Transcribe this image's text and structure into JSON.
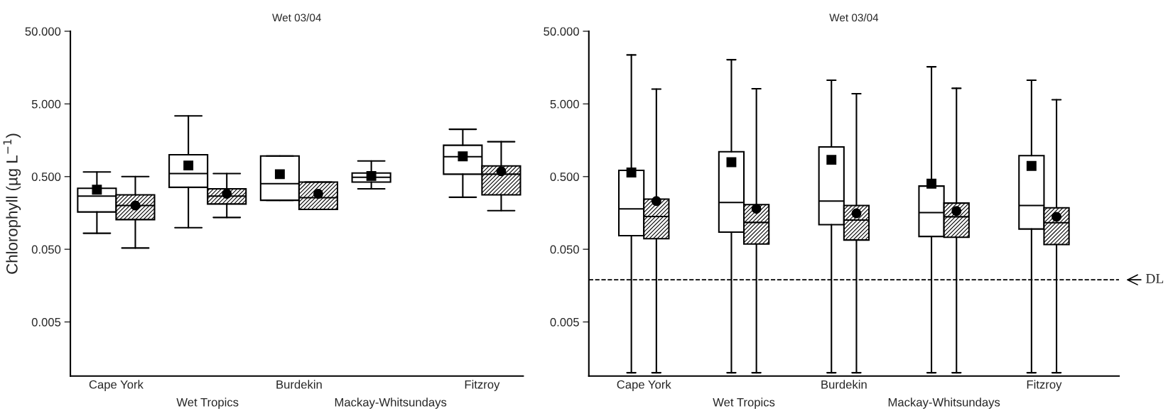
{
  "chart_data": [
    {
      "type": "box",
      "title": "Wet 03/04",
      "ylabel": "Chlorophyll (µg L$^{−1}$)",
      "log": true,
      "ylim": [
        0.0009,
        50
      ],
      "yticks": [
        {
          "value": 50,
          "label": "50.000"
        },
        {
          "value": 5,
          "label": "5.000"
        },
        {
          "value": 0.5,
          "label": "0.500"
        },
        {
          "value": 0.05,
          "label": "0.050"
        },
        {
          "value": 0.005,
          "label": "0.005"
        }
      ],
      "categories": [
        "Cape York",
        "Wet Tropics",
        "Burdekin",
        "Mackay-Whitsundays",
        "Fitzroy"
      ],
      "series": [
        {
          "color": "#000000",
          "marker": "square",
          "boxes": [
            {
              "low": 0.083,
              "q1": 0.163,
              "median": 0.27,
              "q3": 0.345,
              "high": 0.58,
              "mean": 0.33
            },
            {
              "low": 0.099,
              "q1": 0.356,
              "median": 0.55,
              "q3": 1.0,
              "high": 3.42,
              "mean": 0.71
            },
            {
              "low": 0.236,
              "q1": 0.236,
              "median": 0.4,
              "q3": 0.96,
              "high": 0.96,
              "mean": 0.54
            },
            {
              "low": 0.34,
              "q1": 0.42,
              "median": 0.49,
              "q3": 0.56,
              "high": 0.82,
              "mean": 0.51
            },
            {
              "low": 0.26,
              "q1": 0.54,
              "median": 0.94,
              "q3": 1.35,
              "high": 2.24,
              "mean": 0.95
            }
          ]
        },
        {
          "color": "#000000",
          "marker": "circle",
          "boxes": [
            {
              "low": 0.052,
              "q1": 0.128,
              "median": 0.2,
              "q3": 0.28,
              "high": 0.5,
              "mean": 0.2
            },
            {
              "low": 0.137,
              "q1": 0.21,
              "median": 0.27,
              "q3": 0.34,
              "high": 0.55,
              "mean": 0.29
            },
            {
              "low": 0.177,
              "q1": 0.177,
              "median": 0.256,
              "q3": 0.42,
              "high": 0.42,
              "mean": 0.29
            },
            null,
            {
              "low": 0.17,
              "q1": 0.28,
              "median": 0.54,
              "q3": 0.7,
              "high": 1.51,
              "mean": 0.59
            }
          ]
        }
      ]
    },
    {
      "type": "box",
      "title": "Wet 03/04",
      "log": true,
      "ylim": [
        0.0009,
        50
      ],
      "yticks": [
        {
          "value": 50,
          "label": "50.000"
        },
        {
          "value": 5,
          "label": "5.000"
        },
        {
          "value": 0.5,
          "label": "0.500"
        },
        {
          "value": 0.05,
          "label": "0.050"
        },
        {
          "value": 0.005,
          "label": "0.005"
        }
      ],
      "categories": [
        "Cape York",
        "Wet Tropics",
        "Burdekin",
        "Mackay-Whitsundays",
        "Fitzroy"
      ],
      "ref_lines": [
        {
          "axis": "y",
          "value": 0.019,
          "label": "DL",
          "color": "#000000",
          "line_style": "dashed"
        }
      ],
      "series": [
        {
          "color": "#000000",
          "marker": "square",
          "boxes": [
            {
              "low": 0.001,
              "q1": 0.077,
              "median": 0.18,
              "q3": 0.61,
              "high": 23.6,
              "mean": 0.57
            },
            {
              "low": 0.001,
              "q1": 0.086,
              "median": 0.22,
              "q3": 1.1,
              "high": 20.3,
              "mean": 0.79
            },
            {
              "low": 0.001,
              "q1": 0.109,
              "median": 0.23,
              "q3": 1.28,
              "high": 10.6,
              "mean": 0.85
            },
            {
              "low": 0.001,
              "q1": 0.075,
              "median": 0.16,
              "q3": 0.37,
              "high": 16.2,
              "mean": 0.4
            },
            {
              "low": 0.001,
              "q1": 0.095,
              "median": 0.2,
              "q3": 0.97,
              "high": 10.6,
              "mean": 0.7
            }
          ]
        },
        {
          "color": "#000000",
          "marker": "circle",
          "boxes": [
            {
              "low": 0.001,
              "q1": 0.07,
              "median": 0.141,
              "q3": 0.245,
              "high": 8.0,
              "mean": 0.23
            },
            {
              "low": 0.001,
              "q1": 0.059,
              "median": 0.117,
              "q3": 0.206,
              "high": 8.1,
              "mean": 0.18
            },
            {
              "low": 0.001,
              "q1": 0.067,
              "median": 0.126,
              "q3": 0.2,
              "high": 6.9,
              "mean": 0.156
            },
            {
              "low": 0.001,
              "q1": 0.073,
              "median": 0.14,
              "q3": 0.216,
              "high": 8.2,
              "mean": 0.168
            },
            {
              "low": 0.001,
              "q1": 0.058,
              "median": 0.116,
              "q3": 0.186,
              "high": 5.7,
              "mean": 0.14
            }
          ]
        }
      ]
    }
  ]
}
